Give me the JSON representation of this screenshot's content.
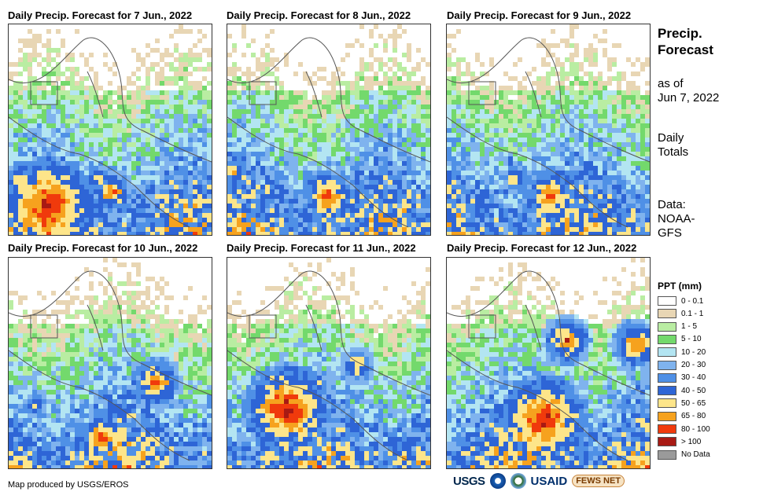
{
  "panels": [
    {
      "title": "Daily Precip. Forecast for 7 Jun., 2022"
    },
    {
      "title": "Daily Precip. Forecast for 8 Jun., 2022"
    },
    {
      "title": "Daily Precip. Forecast for 9 Jun., 2022"
    },
    {
      "title": "Daily Precip. Forecast for 10 Jun., 2022"
    },
    {
      "title": "Daily Precip. Forecast for 11 Jun., 2022"
    },
    {
      "title": "Daily Precip. Forecast for 12 Jun., 2022"
    }
  ],
  "sidebar": {
    "title_line1": "Precip.",
    "title_line2": "Forecast",
    "asof_line1": "as of",
    "asof_line2": "Jun 7, 2022",
    "totals_line1": "Daily",
    "totals_line2": "Totals",
    "data_line1": "Data:",
    "data_line2": "NOAA-",
    "data_line3": "GFS"
  },
  "legend": {
    "title": "PPT (mm)",
    "items": [
      {
        "label": "0 - 0.1",
        "color": "#ffffff"
      },
      {
        "label": "0.1 - 1",
        "color": "#e8d6b4"
      },
      {
        "label": "1 - 5",
        "color": "#b9eda2"
      },
      {
        "label": "5 - 10",
        "color": "#73d96c"
      },
      {
        "label": "10 - 20",
        "color": "#b3e5f2"
      },
      {
        "label": "20 - 30",
        "color": "#7fb3ee"
      },
      {
        "label": "30 - 40",
        "color": "#4f90e6"
      },
      {
        "label": "40 - 50",
        "color": "#2e65d6"
      },
      {
        "label": "50 - 65",
        "color": "#fde58a"
      },
      {
        "label": "65 - 80",
        "color": "#f6a21e"
      },
      {
        "label": "80 - 100",
        "color": "#f03a0c"
      },
      {
        "label": "> 100",
        "color": "#a81a14"
      },
      {
        "label": "No Data",
        "color": "#9a9a9a"
      }
    ]
  },
  "footer": {
    "credit": "Map produced by USGS/EROS",
    "logo_usgs": "USGS",
    "logo_usaid": "USAID",
    "logo_fews": "FEWS NET"
  }
}
